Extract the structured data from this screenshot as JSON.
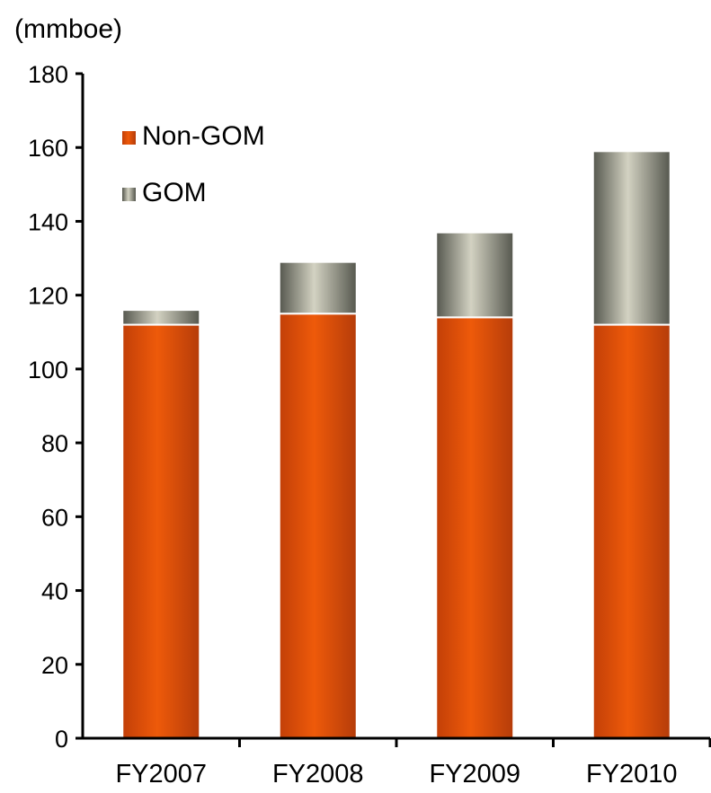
{
  "chart_data": {
    "type": "bar",
    "stacked": true,
    "unit_label": "(mmboe)",
    "categories": [
      "FY2007",
      "FY2008",
      "FY2009",
      "FY2010"
    ],
    "series": [
      {
        "name": "Non-GOM",
        "values": [
          112,
          115,
          114,
          112
        ],
        "color": "#e05412"
      },
      {
        "name": "GOM",
        "values": [
          4,
          14,
          23,
          47
        ],
        "color": "#c9c8b6"
      }
    ],
    "ylim": [
      0,
      180
    ],
    "yticks": [
      0,
      20,
      40,
      60,
      80,
      100,
      120,
      140,
      160,
      180
    ],
    "grid": false,
    "legend_position": "top-left"
  }
}
